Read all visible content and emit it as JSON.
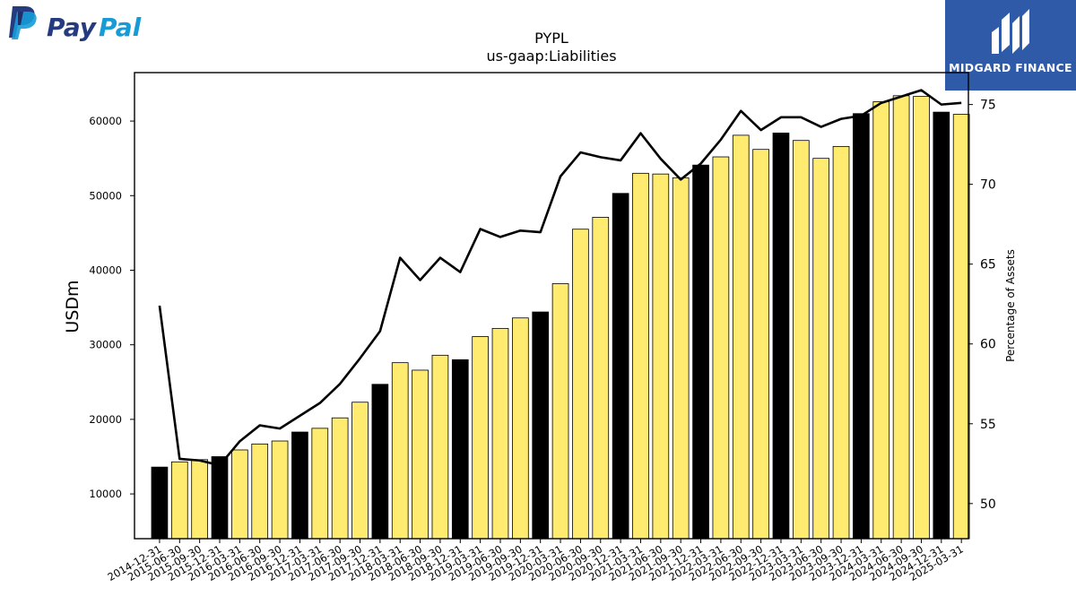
{
  "logos": {
    "left": {
      "icon": "paypal-monogram-icon",
      "word_pay": "Pay",
      "word_pal": "Pal",
      "color_pay": "#253b80",
      "color_pal": "#179bd7"
    },
    "right": {
      "icon": "midgard-bars-icon",
      "text": "MIDGARD FINANCE",
      "background": "#2f5aa8"
    }
  },
  "chart_data": {
    "type": "bar",
    "title": "PYPL",
    "subtitle": "us-gaap:Liabilities",
    "ylabel": "USDm",
    "y2label": "Percentage of Assets",
    "ylim": [
      4000,
      66500
    ],
    "y2lim": [
      47.8,
      77.0
    ],
    "yticks": [
      10000,
      20000,
      30000,
      40000,
      50000,
      60000
    ],
    "y2ticks": [
      50,
      55,
      60,
      65,
      70,
      75
    ],
    "categories": [
      "2014-12-31",
      "2015-06-30",
      "2015-09-30",
      "2015-12-31",
      "2016-03-31",
      "2016-06-30",
      "2016-09-30",
      "2016-12-31",
      "2017-03-31",
      "2017-06-30",
      "2017-09-30",
      "2017-12-31",
      "2018-03-31",
      "2018-06-30",
      "2018-09-30",
      "2018-12-31",
      "2019-03-31",
      "2019-06-30",
      "2019-09-30",
      "2019-12-31",
      "2020-03-31",
      "2020-06-30",
      "2020-09-30",
      "2020-12-31",
      "2021-03-31",
      "2021-06-30",
      "2021-09-30",
      "2021-12-31",
      "2022-03-31",
      "2022-06-30",
      "2022-09-30",
      "2022-12-31",
      "2023-03-31",
      "2023-06-30",
      "2023-09-30",
      "2023-12-31",
      "2024-03-31",
      "2024-06-30",
      "2024-09-30",
      "2024-12-31",
      "2025-03-31"
    ],
    "series": [
      {
        "type": "bar",
        "values": [
          13600,
          14300,
          14600,
          15000,
          15900,
          16700,
          17100,
          18300,
          18800,
          20200,
          22300,
          24700,
          27600,
          26600,
          28600,
          28000,
          31100,
          32200,
          33600,
          34400,
          38200,
          45500,
          47100,
          50300,
          53000,
          52900,
          52400,
          54100,
          55200,
          58100,
          56200,
          58400,
          57400,
          55000,
          56600,
          61000,
          62600,
          63400,
          63300,
          61200,
          60900
        ],
        "colors": [
          "#000000",
          "#ffeb70",
          "#ffeb70",
          "#000000",
          "#ffeb70",
          "#ffeb70",
          "#ffeb70",
          "#000000",
          "#ffeb70",
          "#ffeb70",
          "#ffeb70",
          "#000000",
          "#ffeb70",
          "#ffeb70",
          "#ffeb70",
          "#000000",
          "#ffeb70",
          "#ffeb70",
          "#ffeb70",
          "#000000",
          "#ffeb70",
          "#ffeb70",
          "#ffeb70",
          "#000000",
          "#ffeb70",
          "#ffeb70",
          "#ffeb70",
          "#000000",
          "#ffeb70",
          "#ffeb70",
          "#ffeb70",
          "#000000",
          "#ffeb70",
          "#ffeb70",
          "#ffeb70",
          "#000000",
          "#ffeb70",
          "#ffeb70",
          "#ffeb70",
          "#000000",
          "#ffeb70"
        ]
      },
      {
        "type": "line",
        "axis": "right",
        "color": "#000000",
        "values": [
          62.4,
          52.8,
          52.7,
          52.4,
          53.9,
          54.9,
          54.7,
          55.5,
          56.3,
          57.5,
          59.1,
          60.8,
          65.4,
          64.0,
          65.4,
          64.5,
          67.2,
          66.7,
          67.1,
          67.0,
          70.5,
          72.0,
          71.7,
          71.5,
          73.2,
          71.6,
          70.3,
          71.3,
          72.8,
          74.6,
          73.4,
          74.2,
          74.2,
          73.6,
          74.1,
          74.3,
          75.1,
          75.5,
          75.9,
          75.0,
          75.1
        ]
      }
    ],
    "grid": false,
    "legend": "none"
  }
}
